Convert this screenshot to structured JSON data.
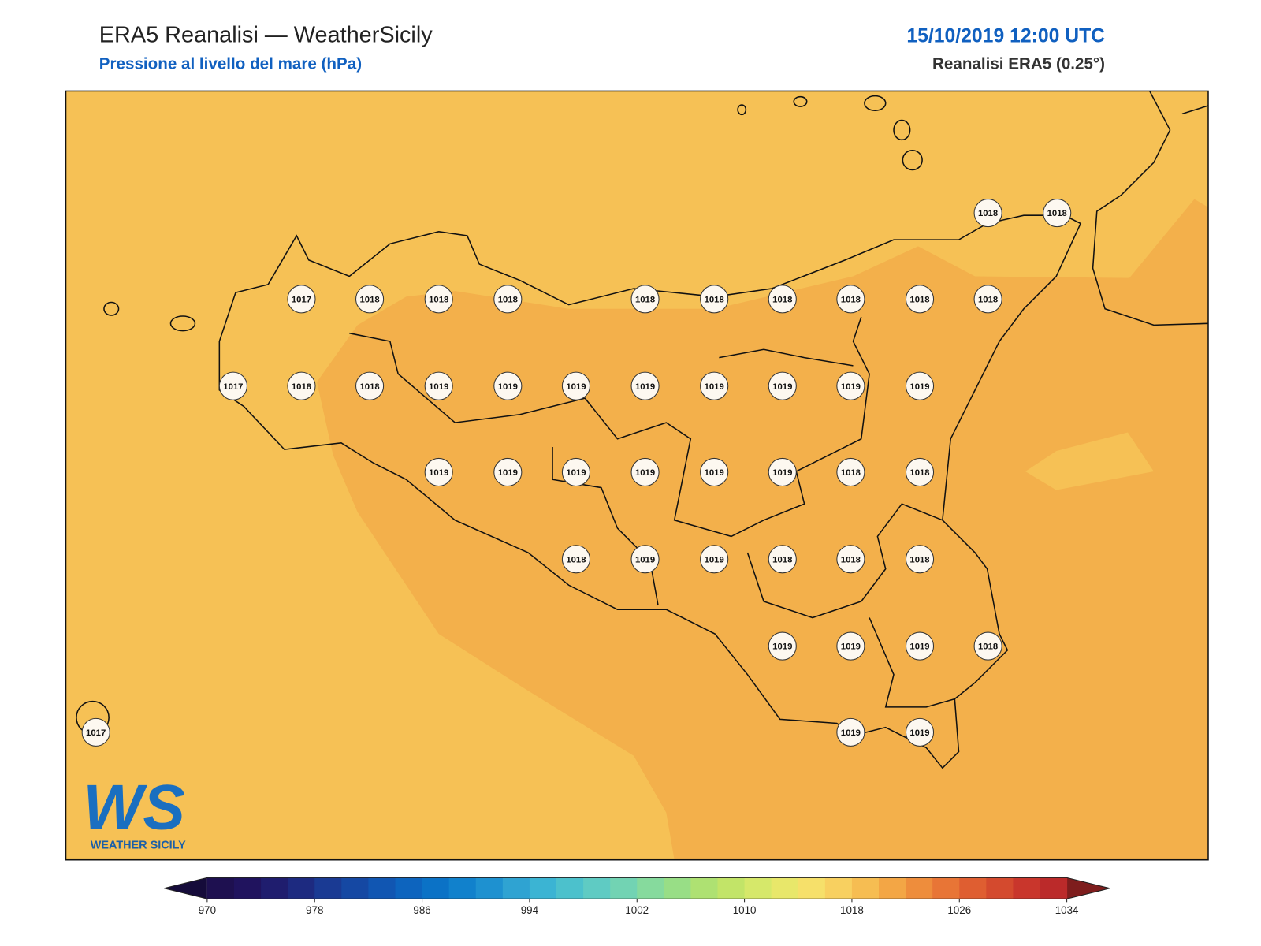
{
  "header": {
    "title": "ERA5 Reanalisi — WeatherSicily",
    "subtitle": "Pressione al livello del mare (hPa)",
    "datetime": "15/10/2019 12:00 UTC",
    "source": "Reanalisi ERA5 (0.25°)"
  },
  "map": {
    "stations": [
      1018,
      1018,
      1017,
      1018,
      1018,
      1018,
      1018,
      1018,
      1018,
      1018,
      1018,
      1018,
      1017,
      1018,
      1018,
      1019,
      1019,
      1019,
      1019,
      1019,
      1019,
      1019,
      1019,
      1019,
      1019,
      1019,
      1019,
      1019,
      1019,
      1018,
      1018,
      1018,
      1019,
      1019,
      1018,
      1018,
      1018,
      1019,
      1019,
      1019,
      1018,
      1017,
      1019,
      1019
    ]
  },
  "colorbar": {
    "range": [
      970,
      1034
    ],
    "ticks": [
      970,
      978,
      986,
      994,
      1002,
      1010,
      1018,
      1026,
      1034
    ],
    "colors": [
      "#1e1050",
      "#20135e",
      "#1f1d6e",
      "#1d2a80",
      "#1a3a93",
      "#1548a3",
      "#1156b2",
      "#0d64be",
      "#0b72c6",
      "#1181cc",
      "#1e91d0",
      "#2fa3d2",
      "#3bb4d3",
      "#4cc1cc",
      "#5fcbc3",
      "#72d3b3",
      "#86da9d",
      "#98de86",
      "#aee172",
      "#c2e468",
      "#d6e86a",
      "#e8e76a",
      "#f6e06a",
      "#f8d060",
      "#f6bd52",
      "#f3a645",
      "#ee8d3c",
      "#e87536",
      "#df5e31",
      "#d44a2e",
      "#c9362c",
      "#bb2a2a"
    ],
    "extend_colors": [
      "#150b3a",
      "#7e1d1d"
    ]
  },
  "logo": {
    "text": "WS",
    "tagline": "WEATHER SICILY"
  }
}
